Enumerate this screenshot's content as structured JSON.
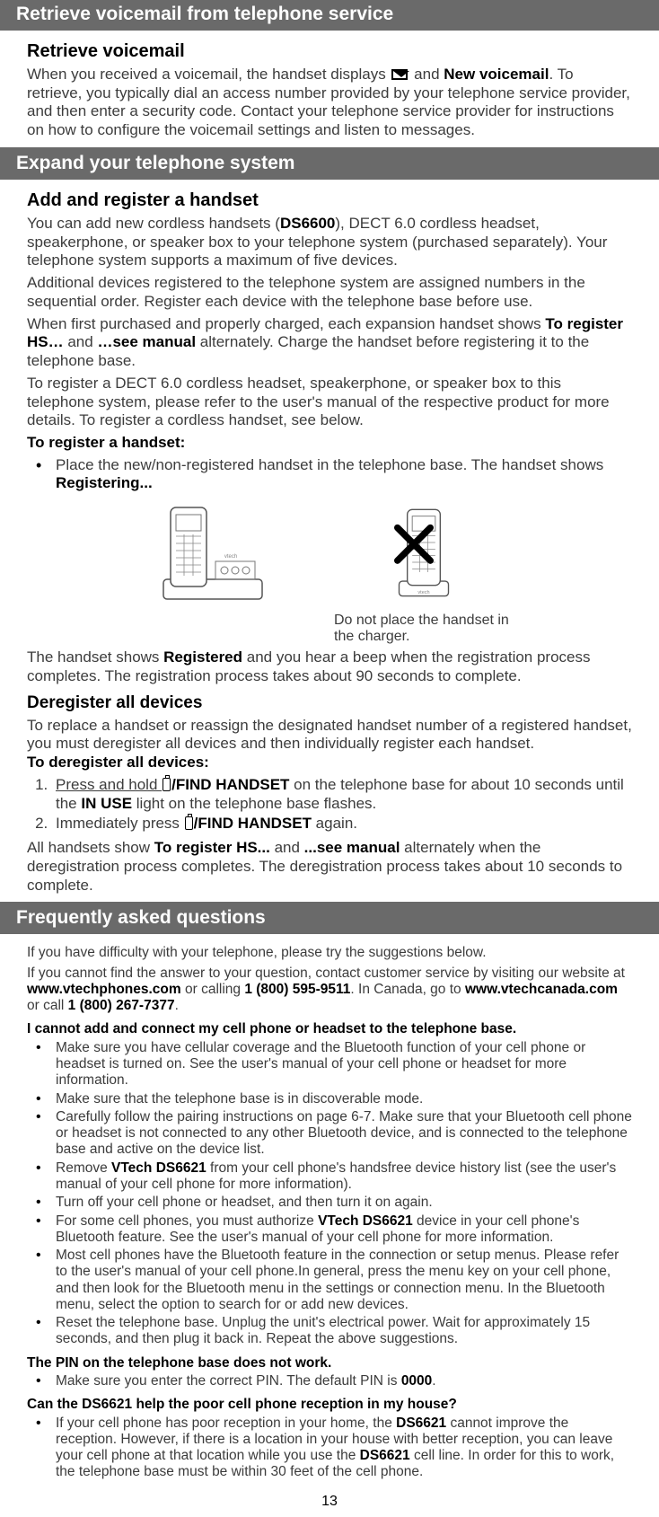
{
  "header1": "Retrieve voicemail from telephone service",
  "sec1": {
    "h": "Retrieve voicemail",
    "p1a": "When you received a voicemail, the handset displays ",
    "p1b": " and ",
    "p1c": "New voicemail",
    "p1d": ". To retrieve, you typically dial an access number provided by your telephone service provider, and then enter a security code. Contact your telephone service provider for instructions on how to configure the voicemail settings and listen to messages."
  },
  "header2": "Expand your telephone system",
  "sec2": {
    "h1": "Add and register a handset",
    "p1a": "You can add new cordless handsets (",
    "p1b": "DS6600",
    "p1c": "), DECT 6.0 cordless headset, speakerphone, or speaker box to your telephone system (purchased separately). Your telephone system supports a maximum of five devices.",
    "p2": "Additional devices registered to the telephone system are assigned numbers in the sequential order. Register each device with the telephone base before use.",
    "p3a": "When first purchased and properly charged, each expansion handset shows ",
    "p3b": "To register HS…",
    "p3c": " and ",
    "p3d": "…see manual",
    "p3e": " alternately. Charge the handset before registering it to the telephone base.",
    "p4": "To register a DECT 6.0 cordless headset, speakerphone, or speaker box to this telephone system, please refer to the user's manual of the respective product for more details. To register a cordless handset, see below.",
    "hreg": "To register a handset:",
    "li1a": "Place the new/non-registered handset in the telephone base. The handset shows ",
    "li1b": "Registering...",
    "caption": "Do not place the handset in the charger.",
    "p5a": "The handset shows ",
    "p5b": "Registered",
    "p5c": " and you hear a beep when the registration process completes. The registration process takes about 90 seconds to complete.",
    "h2": "Deregister all devices",
    "p6": "To replace a handset or reassign the designated handset number of a registered handset, you must deregister all devices and then individually register each handset.",
    "p6b": "To deregister all devices:",
    "ol1a": "Press and hold ",
    "ol1b": "/FIND HANDSET",
    "ol1c": " on the telephone base for about 10 seconds until the ",
    "ol1d": "IN USE",
    "ol1e": " light on the telephone base flashes.",
    "ol2a": "Immediately press ",
    "ol2b": "/FIND HANDSET",
    "ol2c": " again.",
    "p7a": "All handsets show ",
    "p7b": "To register HS...",
    "p7c": " and ",
    "p7d": "...see manual",
    "p7e": " alternately when the deregistration process completes. The deregistration process takes about 10 seconds to complete."
  },
  "header3": "Frequently asked questions",
  "sec3": {
    "intro1": "If you have difficulty with your telephone, please try the suggestions below.",
    "intro2a": "If you cannot find the answer to your question, contact customer service by visiting our website at ",
    "intro2b": "www.vtechphones.com",
    "intro2c": " or calling ",
    "intro2d": "1 (800) 595-9511",
    "intro2e": ". In Canada, go to ",
    "intro2f": "www.vtechcanada.com",
    "intro2g": " or call ",
    "intro2h": "1 (800) 267-7377",
    "intro2i": ".",
    "q1": "I cannot add and connect my cell phone or headset to the telephone base.",
    "q1_items": [
      "Make sure you have cellular coverage and the Bluetooth function of your cell phone or headset is turned on. See the user's manual of your cell phone or headset for more information.",
      "Make sure that the telephone base is in discoverable mode.",
      "Carefully follow the pairing instructions on page 6-7. Make sure that your Bluetooth cell phone or headset is not connected to any other Bluetooth device, and is connected to the telephone base and active on the device list.",
      {
        "a": "Remove ",
        "b": "VTech DS6621",
        "c": " from your cell phone's handsfree device history list (see the user's manual of your cell phone for more information)."
      },
      "Turn off your cell phone or headset, and then turn it on again.",
      {
        "a": "For some cell phones, you must authorize ",
        "b": "VTech DS6621",
        "c": " device in your cell phone's Bluetooth feature. See the user's manual of your cell phone for more information."
      },
      "Most cell phones have the Bluetooth feature in the connection or setup menus. Please refer to the user's manual of your cell phone.In general, press the menu key on your cell phone, and then look for the Bluetooth menu in the settings or connection menu. In the Bluetooth menu, select the option to search for or add new devices.",
      "Reset the telephone base. Unplug the unit's electrical power. Wait for approximately 15 seconds, and then plug it back in. Repeat the above suggestions."
    ],
    "q2": "The PIN on the telephone base does not work.",
    "q2_li_a": "Make sure you enter the correct PIN. The default PIN is ",
    "q2_li_b": "0000",
    "q2_li_c": ".",
    "q3": "Can the DS6621 help the poor cell phone reception in my house?",
    "q3_li_a": "If your cell phone has poor reception in your home, the ",
    "q3_li_b": "DS6621",
    "q3_li_c": " cannot improve the reception. However, if there is a location in your house with better reception, you can leave your cell phone at that location while you use the ",
    "q3_li_d": "DS6621",
    "q3_li_e": " cell line. In order for this to work, the telephone base must be within 30 feet of the cell phone."
  },
  "pgnum": "13"
}
